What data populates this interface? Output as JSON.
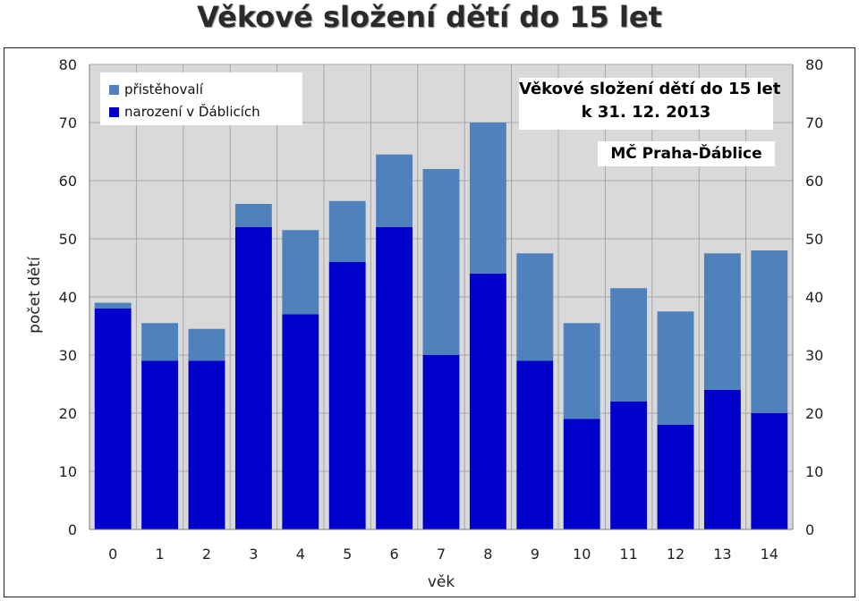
{
  "page": {
    "title": "Věkové složení dětí do 15 let"
  },
  "colors": {
    "immigrants": "#4f81bd",
    "born": "#0000cc",
    "plot_bg": "#d9d9d9",
    "grid": "#a6a6a6"
  },
  "legend": {
    "immigrants_label": "přistěhovalí",
    "born_label": "narození v Ďáblicích"
  },
  "info": {
    "line1": "Věkové složení dětí do 15 let",
    "line2": "k 31. 12. 2013",
    "place": "MČ Praha-Ďáblice"
  },
  "chart_data": {
    "type": "bar",
    "stacked": true,
    "xlabel": "věk",
    "ylabel": "počet dětí",
    "ylim": [
      0,
      80
    ],
    "yticks": [
      0,
      10,
      20,
      30,
      40,
      50,
      60,
      70,
      80
    ],
    "secondary_y_axis": true,
    "grid": true,
    "legend_position": "top-left",
    "categories": [
      "0",
      "1",
      "2",
      "3",
      "4",
      "5",
      "6",
      "7",
      "8",
      "9",
      "10",
      "11",
      "12",
      "13",
      "14"
    ],
    "series": [
      {
        "name": "narození v Ďáblicích",
        "values": [
          38,
          29,
          29,
          52,
          37,
          46,
          52,
          30,
          44,
          29,
          19,
          22,
          18,
          24,
          20
        ]
      },
      {
        "name": "přistěhovalí",
        "values": [
          1,
          6.5,
          5.5,
          4,
          14.5,
          10.5,
          12.5,
          32,
          26,
          18.5,
          16.5,
          19.5,
          19.5,
          23.5,
          28
        ]
      }
    ]
  }
}
